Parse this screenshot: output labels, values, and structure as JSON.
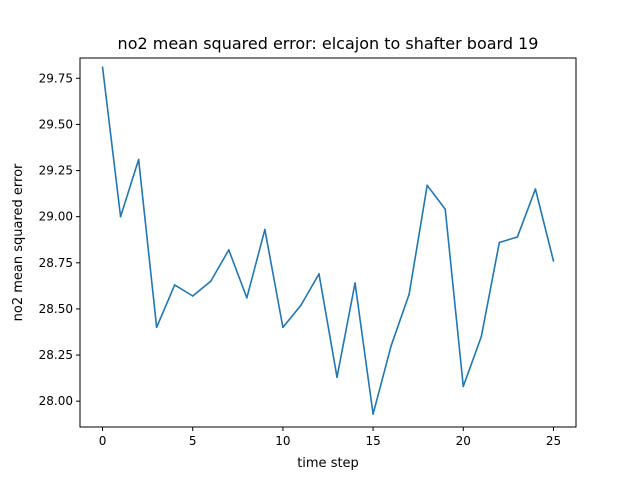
{
  "chart_data": {
    "type": "line",
    "title": "no2 mean squared error: elcajon to shafter board 19",
    "xlabel": "time step",
    "ylabel": "no2 mean squared error",
    "xlim": [
      -1.25,
      26.25
    ],
    "ylim": [
      27.86,
      29.86
    ],
    "xticks": [
      0,
      5,
      10,
      15,
      20,
      25
    ],
    "yticks": [
      28.0,
      28.25,
      28.5,
      28.75,
      29.0,
      29.25,
      29.5,
      29.75
    ],
    "xtick_labels": [
      "0",
      "5",
      "10",
      "15",
      "20",
      "25"
    ],
    "ytick_labels": [
      "28.00",
      "28.25",
      "28.50",
      "28.75",
      "29.00",
      "29.25",
      "29.50",
      "29.75"
    ],
    "grid": false,
    "series": [
      {
        "color": "#1f77b4",
        "x": [
          0,
          1,
          2,
          3,
          4,
          5,
          6,
          7,
          8,
          9,
          10,
          11,
          12,
          13,
          14,
          15,
          16,
          17,
          18,
          19,
          20,
          21,
          22,
          23,
          24,
          25
        ],
        "values": [
          29.81,
          29.0,
          29.31,
          28.4,
          28.63,
          28.57,
          28.65,
          28.82,
          28.56,
          28.93,
          28.4,
          28.52,
          28.69,
          28.13,
          28.64,
          27.93,
          28.3,
          28.58,
          29.17,
          29.04,
          28.08,
          28.35,
          28.86,
          28.89,
          29.15,
          28.76
        ]
      }
    ]
  }
}
